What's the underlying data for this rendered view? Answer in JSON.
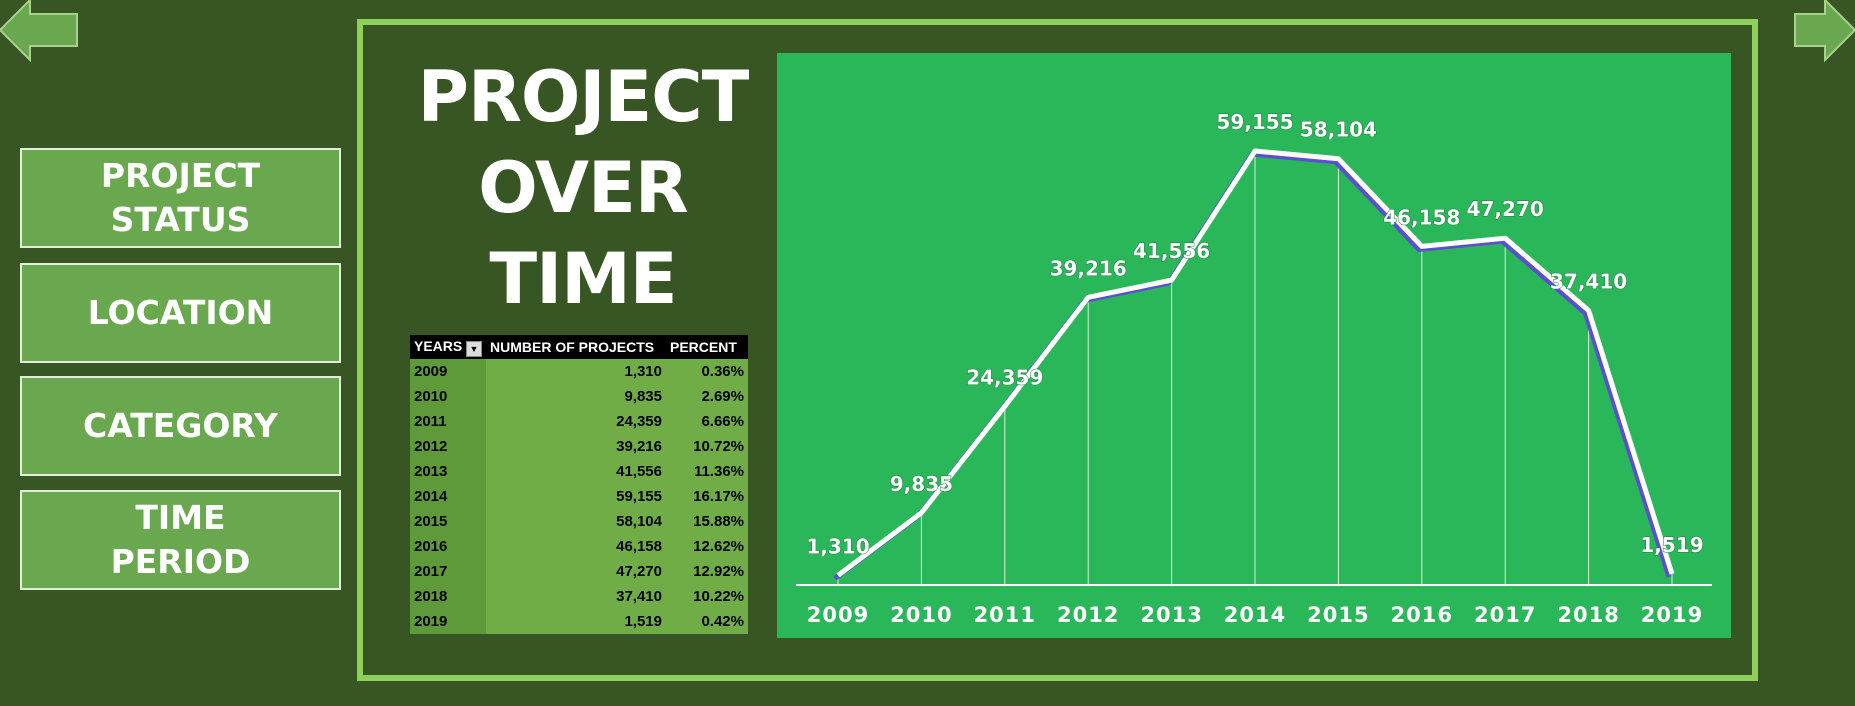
{
  "nav": {
    "buttons": [
      "PROJECT STATUS",
      "LOCATION",
      "CATEGORY",
      "TIME PERIOD"
    ]
  },
  "title": "PROJECT OVER TIME",
  "table": {
    "columns": [
      "YEARS",
      "NUMBER OF PROJECTS",
      "PERCENT"
    ],
    "rows": [
      [
        "2009",
        "1,310",
        "0.36%"
      ],
      [
        "2010",
        "9,835",
        "2.69%"
      ],
      [
        "2011",
        "24,359",
        "6.66%"
      ],
      [
        "2012",
        "39,216",
        "10.72%"
      ],
      [
        "2013",
        "41,556",
        "11.36%"
      ],
      [
        "2014",
        "59,155",
        "16.17%"
      ],
      [
        "2015",
        "58,104",
        "15.88%"
      ],
      [
        "2016",
        "46,158",
        "12.62%"
      ],
      [
        "2017",
        "47,270",
        "12.92%"
      ],
      [
        "2018",
        "37,410",
        "10.22%"
      ],
      [
        "2019",
        "1,519",
        "0.42%"
      ]
    ]
  },
  "chart_data": {
    "type": "line",
    "categories": [
      "2009",
      "2010",
      "2011",
      "2012",
      "2013",
      "2014",
      "2015",
      "2016",
      "2017",
      "2018",
      "2019"
    ],
    "values": [
      1310,
      9835,
      24359,
      39216,
      41556,
      59155,
      58104,
      46158,
      47270,
      37410,
      1519
    ],
    "value_labels": [
      "1,310",
      "9,835",
      "24,359",
      "39,216",
      "41,556",
      "59,155",
      "58,104",
      "46,158",
      "47,270",
      "37,410",
      "1,519"
    ],
    "color": "#ffffff"
  }
}
